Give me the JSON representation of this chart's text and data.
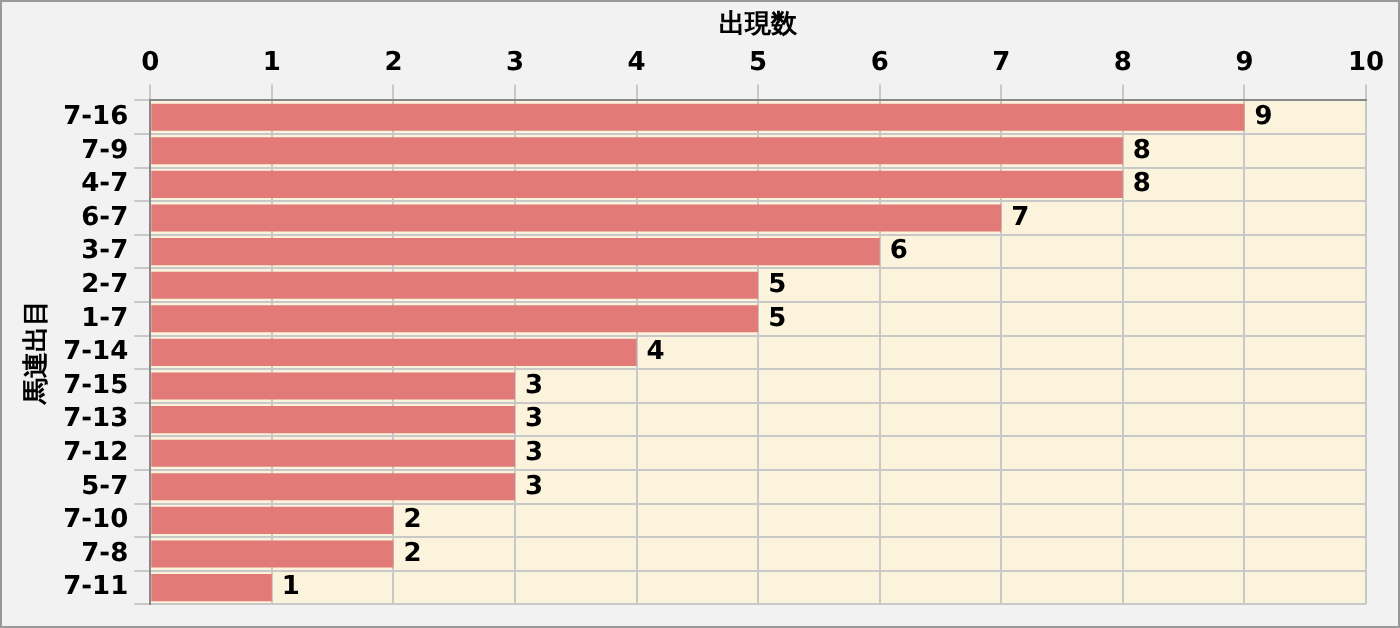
{
  "chart_data": {
    "type": "bar",
    "orientation": "horizontal",
    "xlabel": "出現数",
    "ylabel": "馬連出目",
    "categories": [
      "7-16",
      "7-9",
      "4-7",
      "6-7",
      "3-7",
      "2-7",
      "1-7",
      "7-14",
      "7-15",
      "7-13",
      "7-12",
      "5-7",
      "7-10",
      "7-8",
      "7-11"
    ],
    "values": [
      9,
      8,
      8,
      7,
      6,
      5,
      5,
      4,
      3,
      3,
      3,
      3,
      2,
      2,
      1
    ],
    "color": "#e27b78",
    "xlim": [
      0,
      10
    ],
    "xticks": [
      0,
      1,
      2,
      3,
      4,
      5,
      6,
      7,
      8,
      9,
      10
    ],
    "grid": true,
    "data_labels": true
  }
}
